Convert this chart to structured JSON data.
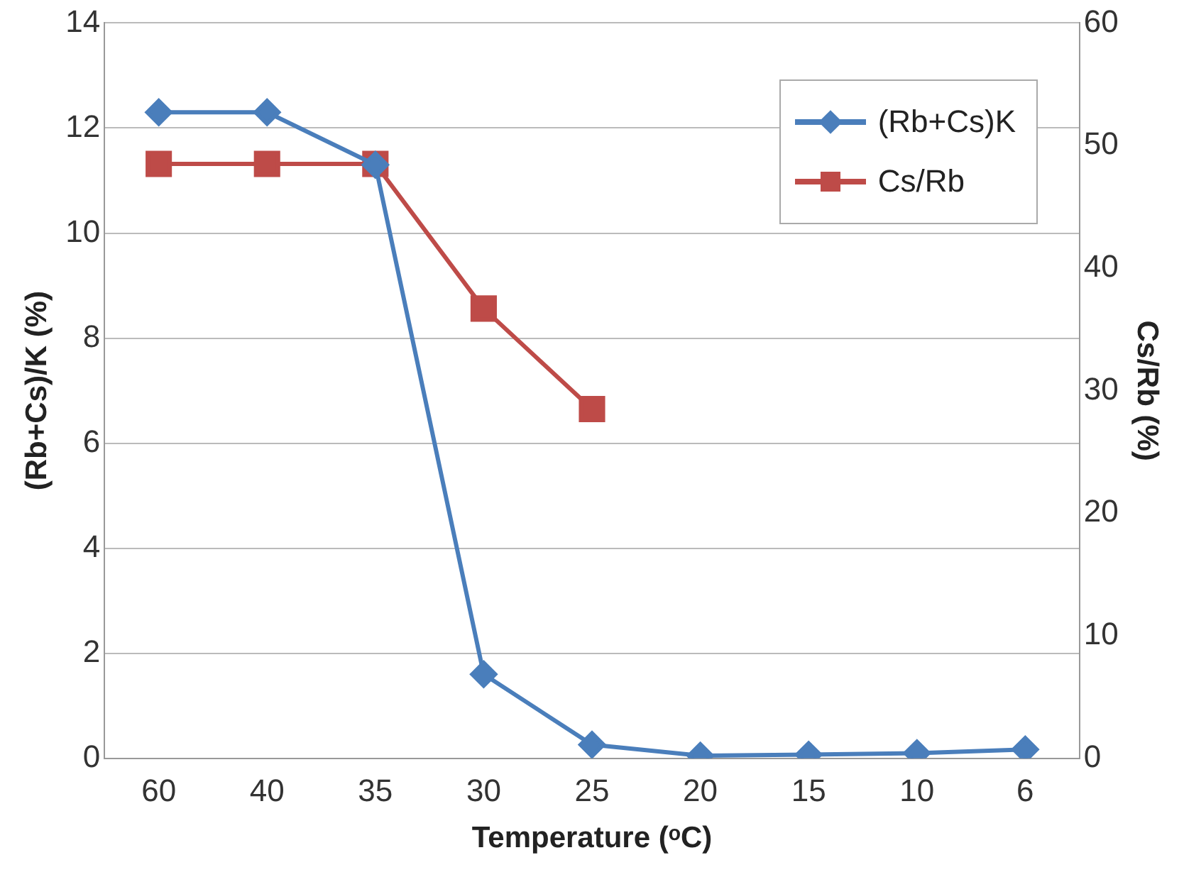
{
  "chart_data": {
    "type": "line",
    "xlabel": "Temperature (ᵒC)",
    "ylabel": "(Rb+Cs)/K (%)",
    "y2label": "Cs/Rb (%)",
    "categories": [
      "60",
      "40",
      "35",
      "30",
      "25",
      "20",
      "15",
      "10",
      "6"
    ],
    "series": [
      {
        "name": "(Rb+Cs)K",
        "color": "#4a7ebb",
        "marker": "diamond",
        "values": [
          12.3,
          12.3,
          11.3,
          1.6,
          0.26,
          0.05,
          0.07,
          0.1,
          0.17
        ]
      },
      {
        "name": "Cs/Rb",
        "color": "#be4b48",
        "marker": "square",
        "axis": "y2",
        "values": [
          48.5,
          48.5,
          48.5,
          36.7,
          28.5,
          null,
          null,
          null,
          null
        ]
      }
    ],
    "ylim": [
      0,
      14
    ],
    "yticks": [
      0,
      2,
      4,
      6,
      8,
      10,
      12,
      14
    ],
    "y2lim": [
      0,
      60
    ],
    "y2ticks": [
      0,
      10,
      20,
      30,
      40,
      50,
      60
    ],
    "grid": "y",
    "legend": "top right"
  }
}
